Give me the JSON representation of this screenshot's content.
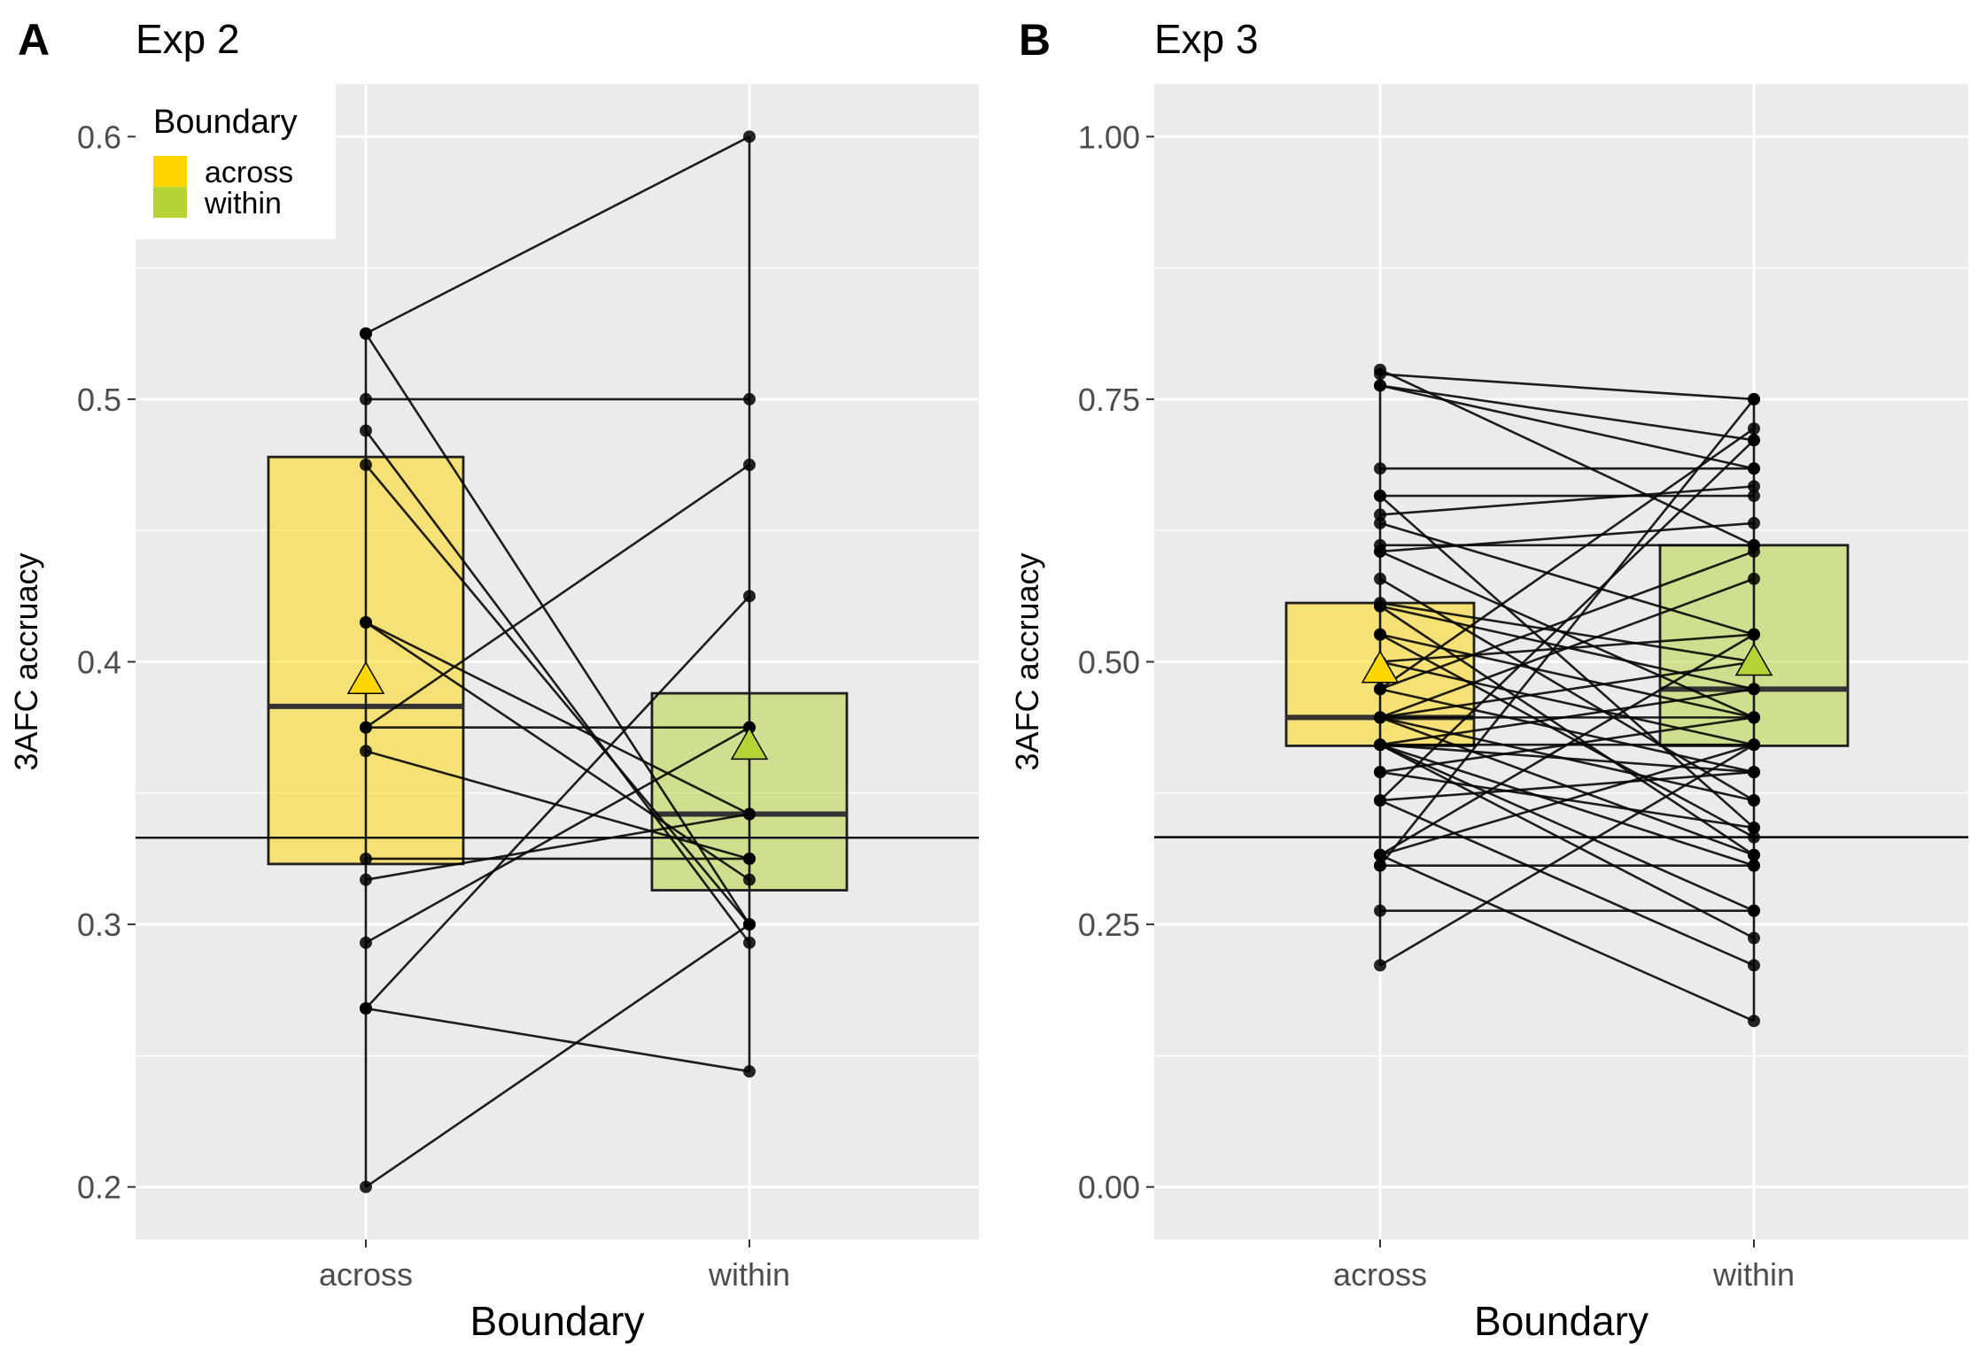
{
  "chart_data": [
    {
      "panel_tag": "A",
      "title": "Exp 2",
      "type": "box",
      "xlabel": "Boundary",
      "ylabel": "3AFC accruacy",
      "categories": [
        "across",
        "within"
      ],
      "ylim": [
        0.18,
        0.62
      ],
      "yticks": [
        0.2,
        0.3,
        0.4,
        0.5,
        0.6
      ],
      "ytick_labels": [
        "0.2",
        "0.3",
        "0.4",
        "0.5",
        "0.6"
      ],
      "chance_line": 0.333,
      "boxes": [
        {
          "category": "across",
          "q1": 0.323,
          "median": 0.383,
          "q3": 0.478,
          "mean": 0.393,
          "color": "#FFD700"
        },
        {
          "category": "within",
          "q1": 0.313,
          "median": 0.342,
          "q3": 0.388,
          "mean": 0.368,
          "color": "#B5D334"
        }
      ],
      "pairs": [
        [
          0.525,
          0.6
        ],
        [
          0.525,
          0.3
        ],
        [
          0.5,
          0.5
        ],
        [
          0.488,
          0.293
        ],
        [
          0.475,
          0.3
        ],
        [
          0.415,
          0.342
        ],
        [
          0.415,
          0.317
        ],
        [
          0.375,
          0.475
        ],
        [
          0.375,
          0.375
        ],
        [
          0.366,
          0.325
        ],
        [
          0.325,
          0.325
        ],
        [
          0.317,
          0.342
        ],
        [
          0.293,
          0.375
        ],
        [
          0.268,
          0.425
        ],
        [
          0.268,
          0.244
        ],
        [
          0.2,
          0.3
        ]
      ],
      "legend": {
        "title": "Boundary",
        "entries": [
          {
            "label": "across",
            "color": "#FFD700"
          },
          {
            "label": "within",
            "color": "#B5D334"
          }
        ]
      }
    },
    {
      "panel_tag": "B",
      "title": "Exp 3",
      "type": "box",
      "xlabel": "Boundary",
      "ylabel": "3AFC accruacy",
      "categories": [
        "across",
        "within"
      ],
      "ylim": [
        -0.05,
        1.05
      ],
      "yticks": [
        0.0,
        0.25,
        0.5,
        0.75,
        1.0
      ],
      "ytick_labels": [
        "0.00",
        "0.25",
        "0.50",
        "0.75",
        "1.00"
      ],
      "chance_line": 0.333,
      "boxes": [
        {
          "category": "across",
          "q1": 0.42,
          "median": 0.447,
          "q3": 0.556,
          "mean": 0.493,
          "color": "#FFD700"
        },
        {
          "category": "within",
          "q1": 0.42,
          "median": 0.474,
          "q3": 0.611,
          "mean": 0.5,
          "color": "#B5D334"
        }
      ],
      "pairs": [
        [
          0.778,
          0.611
        ],
        [
          0.774,
          0.75
        ],
        [
          0.763,
          0.711
        ],
        [
          0.763,
          0.684
        ],
        [
          0.684,
          0.684
        ],
        [
          0.658,
          0.658
        ],
        [
          0.658,
          0.342
        ],
        [
          0.64,
          0.667
        ],
        [
          0.632,
          0.526
        ],
        [
          0.611,
          0.611
        ],
        [
          0.605,
          0.632
        ],
        [
          0.605,
          0.447
        ],
        [
          0.556,
          0.5
        ],
        [
          0.553,
          0.474
        ],
        [
          0.553,
          0.316
        ],
        [
          0.526,
          0.447
        ],
        [
          0.5,
          0.526
        ],
        [
          0.5,
          0.421
        ],
        [
          0.474,
          0.605
        ],
        [
          0.474,
          0.395
        ],
        [
          0.447,
          0.579
        ],
        [
          0.447,
          0.5
        ],
        [
          0.447,
          0.447
        ],
        [
          0.447,
          0.368
        ],
        [
          0.447,
          0.316
        ],
        [
          0.421,
          0.474
        ],
        [
          0.421,
          0.421
        ],
        [
          0.421,
          0.395
        ],
        [
          0.421,
          0.263
        ],
        [
          0.421,
          0.237
        ],
        [
          0.395,
          0.447
        ],
        [
          0.395,
          0.342
        ],
        [
          0.368,
          0.711
        ],
        [
          0.368,
          0.395
        ],
        [
          0.368,
          0.211
        ],
        [
          0.316,
          0.526
        ],
        [
          0.316,
          0.421
        ],
        [
          0.316,
          0.158
        ],
        [
          0.306,
          0.306
        ],
        [
          0.306,
          0.75
        ],
        [
          0.263,
          0.263
        ],
        [
          0.211,
          0.421
        ],
        [
          0.579,
          0.368
        ],
        [
          0.526,
          0.333
        ],
        [
          0.474,
          0.722
        ],
        [
          0.421,
          0.306
        ]
      ]
    }
  ]
}
